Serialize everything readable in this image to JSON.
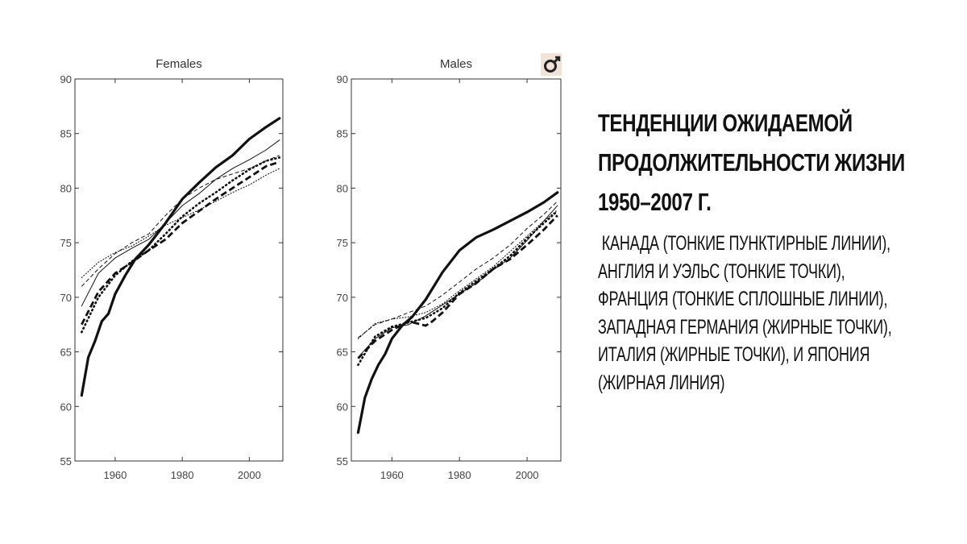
{
  "caption": {
    "title_lines": [
      "ТЕНДЕНЦИИ ОЖИДАЕМОЙ",
      "ПРОДОЛЖИТЕЛЬНОСТИ ЖИЗНИ",
      "1950–2007 Г."
    ],
    "body_lines": [
      " КАНАДА (ТОНКИЕ ПУНКТИРНЫЕ ЛИНИИ),",
      "АНГЛИЯ И УЭЛЬС (ТОНКИЕ ТОЧКИ),",
      "ФРАНЦИЯ (ТОНКИЕ СПЛОШНЫЕ ЛИНИИ),",
      "ЗАПАДНАЯ ГЕРМАНИЯ (ЖИРНЫЕ ТОЧКИ),",
      "ИТАЛИЯ (ЖИРНЫЕ ТОЧКИ), И ЯПОНИЯ",
      "(ЖИРНАЯ ЛИНИЯ)"
    ]
  },
  "male_symbol_icon": "male-symbol-icon",
  "chart_data": [
    {
      "type": "line",
      "title": "Females",
      "xlabel": "",
      "ylabel": "",
      "xlim": [
        1948,
        2010
      ],
      "ylim": [
        55,
        90
      ],
      "y_ticks": [
        55,
        60,
        65,
        70,
        75,
        80,
        85,
        90
      ],
      "x_ticks": [
        1960,
        1980,
        2000
      ],
      "grid": false,
      "series": [
        {
          "style": "thick-solid",
          "x": [
            1950,
            1952,
            1954,
            1956,
            1958,
            1960,
            1963,
            1966,
            1970,
            1975,
            1980,
            1985,
            1990,
            1995,
            2000,
            2005,
            2009
          ],
          "y": [
            61.0,
            64.5,
            66.0,
            67.8,
            68.5,
            70.3,
            72.0,
            73.5,
            74.8,
            76.8,
            79.0,
            80.5,
            81.9,
            83.0,
            84.5,
            85.6,
            86.4
          ]
        },
        {
          "style": "thin-solid",
          "x": [
            1950,
            1955,
            1960,
            1965,
            1970,
            1975,
            1980,
            1985,
            1990,
            1995,
            2000,
            2005,
            2009
          ],
          "y": [
            69.2,
            72.2,
            73.6,
            74.5,
            75.3,
            76.8,
            78.4,
            79.5,
            80.8,
            81.8,
            82.6,
            83.5,
            84.4
          ]
        },
        {
          "style": "thin-dashed",
          "x": [
            1950,
            1955,
            1960,
            1965,
            1970,
            1975,
            1980,
            1985,
            1990,
            1995,
            2000,
            2005,
            2009
          ],
          "y": [
            71.0,
            72.6,
            74.0,
            75.0,
            75.8,
            77.5,
            79.0,
            80.0,
            80.8,
            81.3,
            81.8,
            82.5,
            83.0
          ]
        },
        {
          "style": "thin-dotted",
          "x": [
            1950,
            1955,
            1960,
            1965,
            1970,
            1975,
            1980,
            1985,
            1990,
            1995,
            2000,
            2005,
            2009
          ],
          "y": [
            71.8,
            73.2,
            74.1,
            74.7,
            75.6,
            76.6,
            77.3,
            78.0,
            78.8,
            79.6,
            80.3,
            81.2,
            81.8
          ]
        },
        {
          "style": "thick-dotted",
          "x": [
            1950,
            1955,
            1960,
            1965,
            1970,
            1975,
            1980,
            1985,
            1990,
            1995,
            2000,
            2005,
            2009
          ],
          "y": [
            66.8,
            70.0,
            72.0,
            73.3,
            74.3,
            75.8,
            77.4,
            78.6,
            79.6,
            80.7,
            81.7,
            82.5,
            82.8
          ]
        },
        {
          "style": "thick-dashed",
          "x": [
            1950,
            1955,
            1960,
            1965,
            1970,
            1975,
            1980,
            1985,
            1990,
            1995,
            2000,
            2005,
            2009
          ],
          "y": [
            67.5,
            70.5,
            72.2,
            73.2,
            74.3,
            75.3,
            76.8,
            77.9,
            79.0,
            80.0,
            81.0,
            82.0,
            82.4
          ]
        }
      ]
    },
    {
      "type": "line",
      "title": "Males",
      "xlabel": "",
      "ylabel": "",
      "xlim": [
        1948,
        2010
      ],
      "ylim": [
        55,
        90
      ],
      "y_ticks": [
        55,
        60,
        65,
        70,
        75,
        80,
        85,
        90
      ],
      "x_ticks": [
        1960,
        1980,
        2000
      ],
      "grid": false,
      "series": [
        {
          "style": "thick-solid",
          "x": [
            1950,
            1952,
            1954,
            1956,
            1958,
            1960,
            1963,
            1966,
            1970,
            1975,
            1980,
            1985,
            1990,
            1995,
            2000,
            2005,
            2009
          ],
          "y": [
            57.6,
            60.8,
            62.5,
            63.8,
            64.8,
            66.2,
            67.4,
            68.2,
            69.8,
            72.3,
            74.3,
            75.5,
            76.2,
            77.0,
            77.8,
            78.7,
            79.6
          ]
        },
        {
          "style": "thin-solid",
          "x": [
            1950,
            1955,
            1960,
            1965,
            1970,
            1975,
            1980,
            1985,
            1990,
            1995,
            2000,
            2005,
            2009
          ],
          "y": [
            64.5,
            66.2,
            67.2,
            67.5,
            68.3,
            69.3,
            70.3,
            71.3,
            72.5,
            73.6,
            75.2,
            77.0,
            78.4
          ]
        },
        {
          "style": "thin-dashed",
          "x": [
            1950,
            1955,
            1960,
            1965,
            1970,
            1975,
            1980,
            1985,
            1990,
            1995,
            2000,
            2005,
            2009
          ],
          "y": [
            66.3,
            67.5,
            68.0,
            68.6,
            69.2,
            70.2,
            71.4,
            72.6,
            73.6,
            74.8,
            76.3,
            77.6,
            78.8
          ]
        },
        {
          "style": "thin-dotted",
          "x": [
            1950,
            1955,
            1960,
            1965,
            1970,
            1975,
            1980,
            1985,
            1990,
            1995,
            2000,
            2005,
            2009
          ],
          "y": [
            66.2,
            67.6,
            68.0,
            68.2,
            68.6,
            69.4,
            70.6,
            71.7,
            72.8,
            74.2,
            75.6,
            77.0,
            78.0
          ]
        },
        {
          "style": "thick-dotted",
          "x": [
            1950,
            1955,
            1960,
            1965,
            1970,
            1975,
            1980,
            1985,
            1990,
            1995,
            2000,
            2005,
            2009
          ],
          "y": [
            63.8,
            66.4,
            67.3,
            67.7,
            68.1,
            69.0,
            70.4,
            71.5,
            72.6,
            73.8,
            75.4,
            76.8,
            77.9
          ]
        },
        {
          "style": "thick-dashed",
          "x": [
            1950,
            1955,
            1960,
            1965,
            1970,
            1972,
            1975,
            1980,
            1985,
            1990,
            1995,
            2000,
            2005,
            2009
          ],
          "y": [
            64.4,
            66.0,
            67.0,
            67.8,
            67.4,
            67.8,
            68.6,
            70.3,
            71.3,
            72.6,
            73.5,
            74.8,
            76.2,
            77.5
          ]
        }
      ]
    }
  ]
}
